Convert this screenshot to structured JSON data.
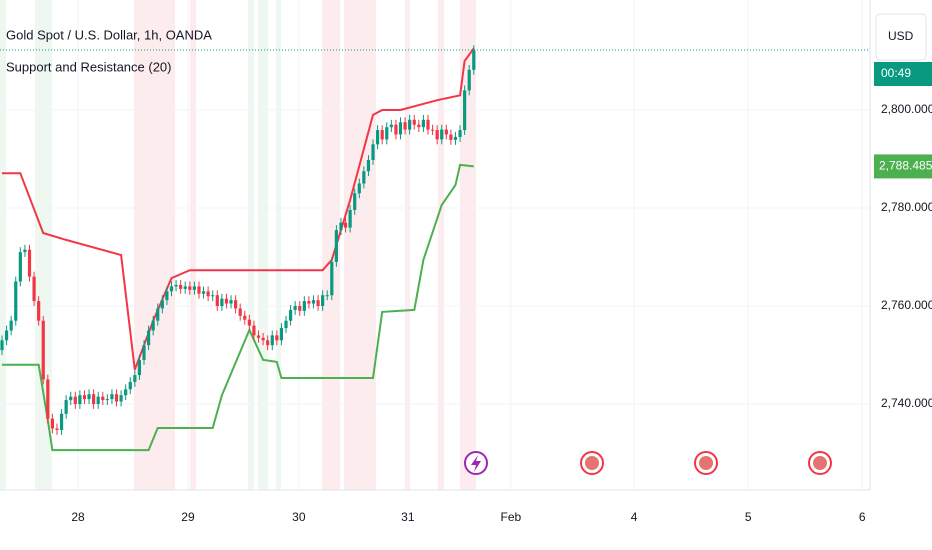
{
  "header": {
    "title": "Gold Spot / U.S. Dollar, 1h, OANDA",
    "indicator": "Support and Resistance (20)",
    "currency": "USD",
    "countdown": "00:49"
  },
  "chart_data": {
    "type": "candlestick",
    "x": [
      0,
      1,
      2,
      3,
      4,
      5,
      6,
      7,
      8,
      9,
      10,
      11,
      12,
      13,
      14,
      15,
      16,
      17,
      18,
      19,
      20,
      21,
      22,
      23,
      24,
      25,
      26,
      27,
      28,
      29,
      30,
      31,
      32,
      33,
      34,
      35,
      36,
      37,
      38,
      39,
      40,
      41,
      42,
      43,
      44,
      45,
      46,
      47,
      48,
      49,
      50,
      51,
      52,
      53,
      54,
      55,
      56,
      57,
      58,
      59,
      60,
      61,
      62,
      63,
      64,
      65,
      66,
      67,
      68,
      69,
      70,
      71,
      72,
      73,
      74,
      75,
      76,
      77,
      78,
      79,
      80,
      81,
      82,
      83,
      84,
      85,
      86,
      87,
      88,
      89,
      90,
      91,
      92,
      93,
      94,
      95,
      96,
      97,
      98,
      99,
      100,
      101,
      102,
      103
    ],
    "open": [
      2751,
      2753,
      2755,
      2757,
      2765,
      2771,
      2771.5,
      2766,
      2761,
      2757,
      2745,
      2737,
      2735,
      2734.7,
      2738,
      2740.8,
      2741.5,
      2740,
      2741.8,
      2741,
      2742,
      2740,
      2741.5,
      2740.8,
      2741,
      2742,
      2740.5,
      2741.8,
      2743,
      2744.5,
      2745.9,
      2749,
      2752,
      2755,
      2757,
      2759.5,
      2761.2,
      2763,
      2764,
      2764.3,
      2763.5,
      2764,
      2763.3,
      2764,
      2762.5,
      2763,
      2762,
      2762.2,
      2760,
      2761.5,
      2760.5,
      2761.2,
      2759.5,
      2758,
      2757.2,
      2756,
      2754,
      2753.5,
      2753,
      2752,
      2754,
      2753,
      2755.5,
      2757,
      2759.2,
      2760,
      2759,
      2761,
      2760.5,
      2761.2,
      2760,
      2762.2,
      2762.2,
      2769,
      2775.5,
      2777,
      2776,
      2779.6,
      2783,
      2785,
      2787.5,
      2789.8,
      2793,
      2795.9,
      2794,
      2796.5,
      2797,
      2795,
      2797.5,
      2796,
      2798,
      2797,
      2796.5,
      2798,
      2796,
      2795.9,
      2794,
      2796,
      2795,
      2793.9,
      2794.5,
      2795.9,
      2804,
      2808.2
    ],
    "high": [
      2754,
      2756,
      2758,
      2766,
      2772,
      2772.5,
      2772.5,
      2767,
      2762,
      2758,
      2746,
      2738,
      2736,
      2739,
      2741.8,
      2742.5,
      2742.5,
      2742.8,
      2742.8,
      2743,
      2743,
      2742.5,
      2742.5,
      2742,
      2743,
      2743,
      2742.8,
      2744,
      2745.5,
      2746.9,
      2750,
      2753,
      2756,
      2758,
      2760.5,
      2762.2,
      2764,
      2765,
      2765.3,
      2765.3,
      2765,
      2765,
      2765,
      2765,
      2764,
      2764,
      2763.2,
      2763.2,
      2762.5,
      2762.5,
      2762.2,
      2762.2,
      2760.5,
      2759,
      2758.2,
      2757,
      2755,
      2754.5,
      2754,
      2755,
      2755,
      2756.5,
      2758,
      2760.2,
      2761,
      2761,
      2762,
      2762,
      2762.2,
      2762.2,
      2763.2,
      2763.2,
      2770,
      2776.5,
      2778,
      2778,
      2780.6,
      2784,
      2786,
      2788.5,
      2790.8,
      2794,
      2796.9,
      2796.9,
      2797.5,
      2798,
      2798,
      2798.5,
      2798.5,
      2799,
      2799,
      2798,
      2799,
      2799,
      2797,
      2796.9,
      2797,
      2797,
      2796,
      2795.5,
      2796.9,
      2805,
      2809.2,
      2813.2
    ],
    "low": [
      2750,
      2752,
      2754,
      2756,
      2764,
      2770,
      2765,
      2760,
      2756,
      2744,
      2736,
      2734,
      2733.7,
      2733.7,
      2737,
      2739.8,
      2739,
      2739,
      2740,
      2740,
      2739,
      2739,
      2739.8,
      2739.8,
      2740,
      2739.5,
      2739.5,
      2740.8,
      2742,
      2743.5,
      2744.9,
      2748,
      2751,
      2754,
      2756,
      2758.5,
      2760.2,
      2762,
      2763,
      2762.5,
      2762.5,
      2762.3,
      2762.3,
      2761.5,
      2761.5,
      2761,
      2761,
      2759,
      2759,
      2759.5,
      2759.5,
      2758.5,
      2757,
      2756.2,
      2755,
      2753,
      2752.5,
      2752,
      2751,
      2751,
      2752,
      2752,
      2754.5,
      2756,
      2758.2,
      2758,
      2758,
      2759.5,
      2759.5,
      2759,
      2759,
      2761.2,
      2761.2,
      2768,
      2774.5,
      2775,
      2775,
      2778.6,
      2782,
      2784,
      2786.5,
      2788.8,
      2792,
      2793,
      2793,
      2795.5,
      2794,
      2794,
      2795,
      2795,
      2796,
      2795.5,
      2795.5,
      2795,
      2794.9,
      2793,
      2793,
      2794,
      2792.9,
      2792.9,
      2793.5,
      2794.9,
      2803,
      2807.2
    ],
    "close": [
      2753,
      2755,
      2757,
      2765,
      2771,
      2771.5,
      2766,
      2761,
      2757,
      2745,
      2737,
      2735,
      2734.7,
      2738,
      2740.8,
      2741.5,
      2740,
      2741.8,
      2741,
      2742,
      2740,
      2741.5,
      2740.8,
      2741,
      2742,
      2740.5,
      2741.8,
      2743,
      2744.5,
      2745.9,
      2749,
      2752,
      2755,
      2757,
      2759.5,
      2761.2,
      2763,
      2764,
      2764.3,
      2763.5,
      2764,
      2763.3,
      2764,
      2762.5,
      2763,
      2762,
      2762.2,
      2760,
      2761.5,
      2760.5,
      2761.2,
      2759.5,
      2758,
      2757.2,
      2756,
      2754,
      2753.5,
      2753,
      2752,
      2754,
      2753,
      2755.5,
      2757,
      2759.2,
      2760,
      2759,
      2761,
      2760.5,
      2761.2,
      2760,
      2762.2,
      2762.2,
      2769,
      2775.5,
      2777,
      2776,
      2779.6,
      2783,
      2785,
      2787.5,
      2789.8,
      2793,
      2795.9,
      2794,
      2796.5,
      2797,
      2795,
      2797.5,
      2796,
      2798,
      2797,
      2796.5,
      2798,
      2796,
      2795.9,
      2794,
      2796,
      2795,
      2793.9,
      2794.5,
      2795.9,
      2804,
      2808.2,
      2812.2
    ],
    "up_color": "#089981",
    "down_color": "#f23645",
    "series": [
      {
        "color": "#f23645",
        "x": [
          0,
          4,
          9,
          14,
          26,
          29,
          33,
          37,
          41,
          70,
          72,
          76,
          81,
          83,
          87,
          95,
          100,
          101,
          103
        ],
        "values": [
          2787.1,
          2787.1,
          2774.9,
          2773.5,
          2770.4,
          2747,
          2757,
          2765.7,
          2767.3,
          2767.3,
          2769.4,
          2781.6,
          2799,
          2800,
          2800,
          2802,
          2803,
          2810,
          2812.6
        ]
      },
      {
        "color": "#4caf50",
        "x": [
          0,
          8,
          10,
          11,
          32,
          34,
          46,
          48,
          54,
          57,
          60,
          61,
          81,
          83,
          90,
          92,
          96,
          99,
          100,
          103
        ],
        "values": [
          2748,
          2748,
          2736.7,
          2730.6,
          2730.6,
          2735.1,
          2735.1,
          2741.8,
          2755.1,
          2749,
          2748.6,
          2745.3,
          2745.3,
          2758.8,
          2759.2,
          2769.4,
          2780.6,
          2784.7,
          2788.8,
          2788.485
        ],
        "last_value_label": "2,788.485"
      }
    ],
    "xlim": [
      -0.44,
      189.5
    ],
    "xticks": [
      {
        "value": 16.6,
        "label": "28"
      },
      {
        "value": 40.6,
        "label": "29"
      },
      {
        "value": 64.8,
        "label": "30"
      },
      {
        "value": 88.6,
        "label": "31"
      },
      {
        "value": 111.1,
        "label": "Feb"
      },
      {
        "value": 138,
        "label": "4"
      },
      {
        "value": 162.9,
        "label": "5"
      },
      {
        "value": 187.8,
        "label": "6"
      }
    ],
    "ylim": [
      2722.45,
      2822.45
    ],
    "yticks": [
      {
        "value": 2740,
        "label": "2,740.000"
      },
      {
        "value": 2760,
        "label": "2,760.000"
      },
      {
        "value": 2780,
        "label": "2,780.000"
      },
      {
        "value": 2800,
        "label": "2,800.000"
      }
    ],
    "grid": true
  }
}
